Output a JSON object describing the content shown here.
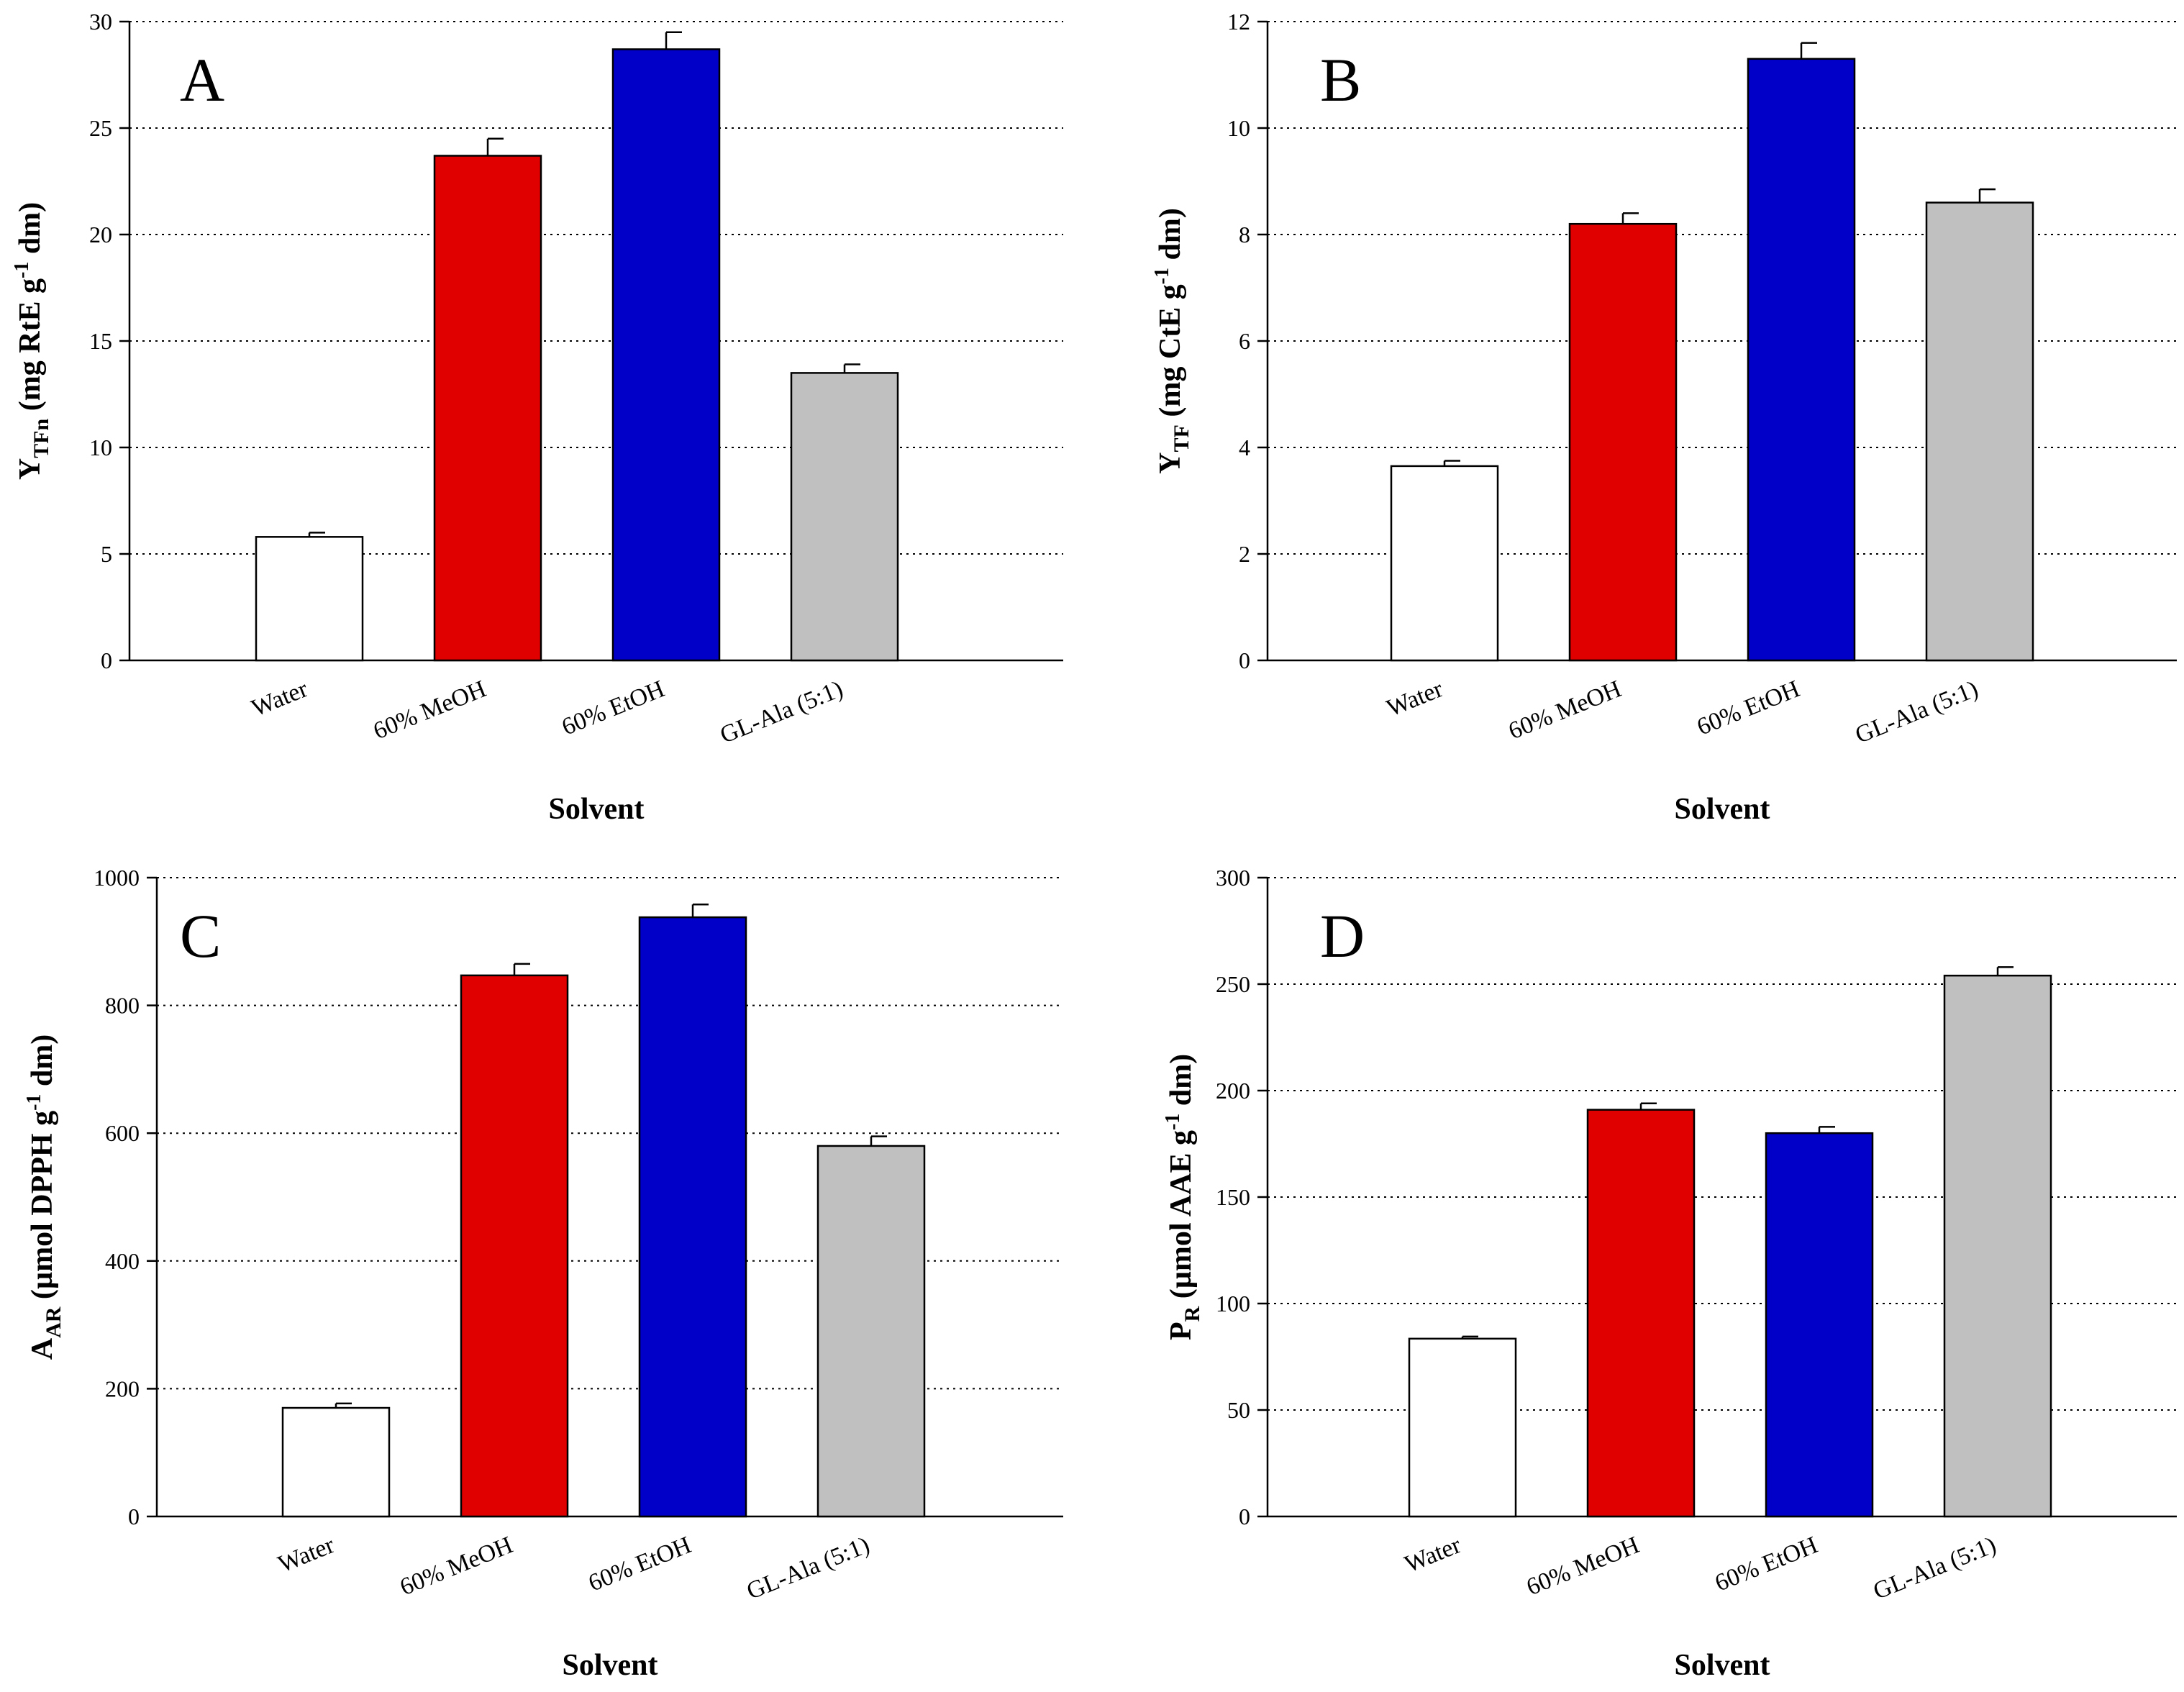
{
  "figure": {
    "colors": {
      "Water": "#ffffff",
      "60% MeOH": "#e00000",
      "60% EtOH": "#0000c8",
      "GL-Ala (5:1)": "#c0c0c0"
    }
  },
  "chart_data": [
    {
      "type": "bar",
      "panel": "A",
      "categories": [
        "Water",
        "60% MeOH",
        "60% EtOH",
        "GL-Ala (5:1)"
      ],
      "values": [
        5.8,
        23.7,
        28.7,
        13.5
      ],
      "errors": [
        0.2,
        0.8,
        0.8,
        0.4
      ],
      "xlabel": "Solvent",
      "ylabel": {
        "main": "Y",
        "sub": "TFn",
        "pre_sup": " (mg RtE g",
        "sup": "-1",
        "post": " dm)"
      },
      "ylim": [
        0,
        30
      ],
      "yticks": [
        0,
        5,
        10,
        15,
        20,
        25,
        30
      ],
      "grid": true,
      "legend": "none"
    },
    {
      "type": "bar",
      "panel": "B",
      "categories": [
        "Water",
        "60% MeOH",
        "60% EtOH",
        "GL-Ala (5:1)"
      ],
      "values": [
        3.65,
        8.2,
        11.3,
        8.6
      ],
      "errors": [
        0.1,
        0.2,
        0.3,
        0.25
      ],
      "xlabel": "Solvent",
      "ylabel": {
        "main": "Y",
        "sub": "TF",
        "pre_sup": " (mg CtE g",
        "sup": "-1",
        "post": " dm)"
      },
      "ylim": [
        0,
        12
      ],
      "yticks": [
        0,
        2,
        4,
        6,
        8,
        10,
        12
      ],
      "grid": true,
      "legend": "none"
    },
    {
      "type": "bar",
      "panel": "C",
      "categories": [
        "Water",
        "60% MeOH",
        "60% EtOH",
        "GL-Ala (5:1)"
      ],
      "values": [
        170,
        847,
        938,
        580
      ],
      "errors": [
        7,
        18,
        20,
        15
      ],
      "xlabel": "Solvent",
      "ylabel": {
        "main": "A",
        "sub": "AR",
        "pre_sup": " (µmol DPPH g",
        "sup": "-1",
        "post": " dm)"
      },
      "ylim": [
        0,
        1000
      ],
      "yticks": [
        0,
        200,
        400,
        600,
        800,
        1000
      ],
      "grid": true,
      "legend": "none"
    },
    {
      "type": "bar",
      "panel": "D",
      "categories": [
        "Water",
        "60% MeOH",
        "60% EtOH",
        "GL-Ala (5:1)"
      ],
      "values": [
        83.5,
        191,
        180,
        254
      ],
      "errors": [
        1,
        3,
        3,
        4
      ],
      "xlabel": "Solvent",
      "ylabel": {
        "main": "P",
        "sub": "R",
        "pre_sup": " (µmol AAE g",
        "sup": "-1",
        "post": " dm)"
      },
      "ylim": [
        0,
        300
      ],
      "yticks": [
        0,
        50,
        100,
        150,
        200,
        250,
        300
      ],
      "grid": true,
      "legend": "none"
    }
  ]
}
